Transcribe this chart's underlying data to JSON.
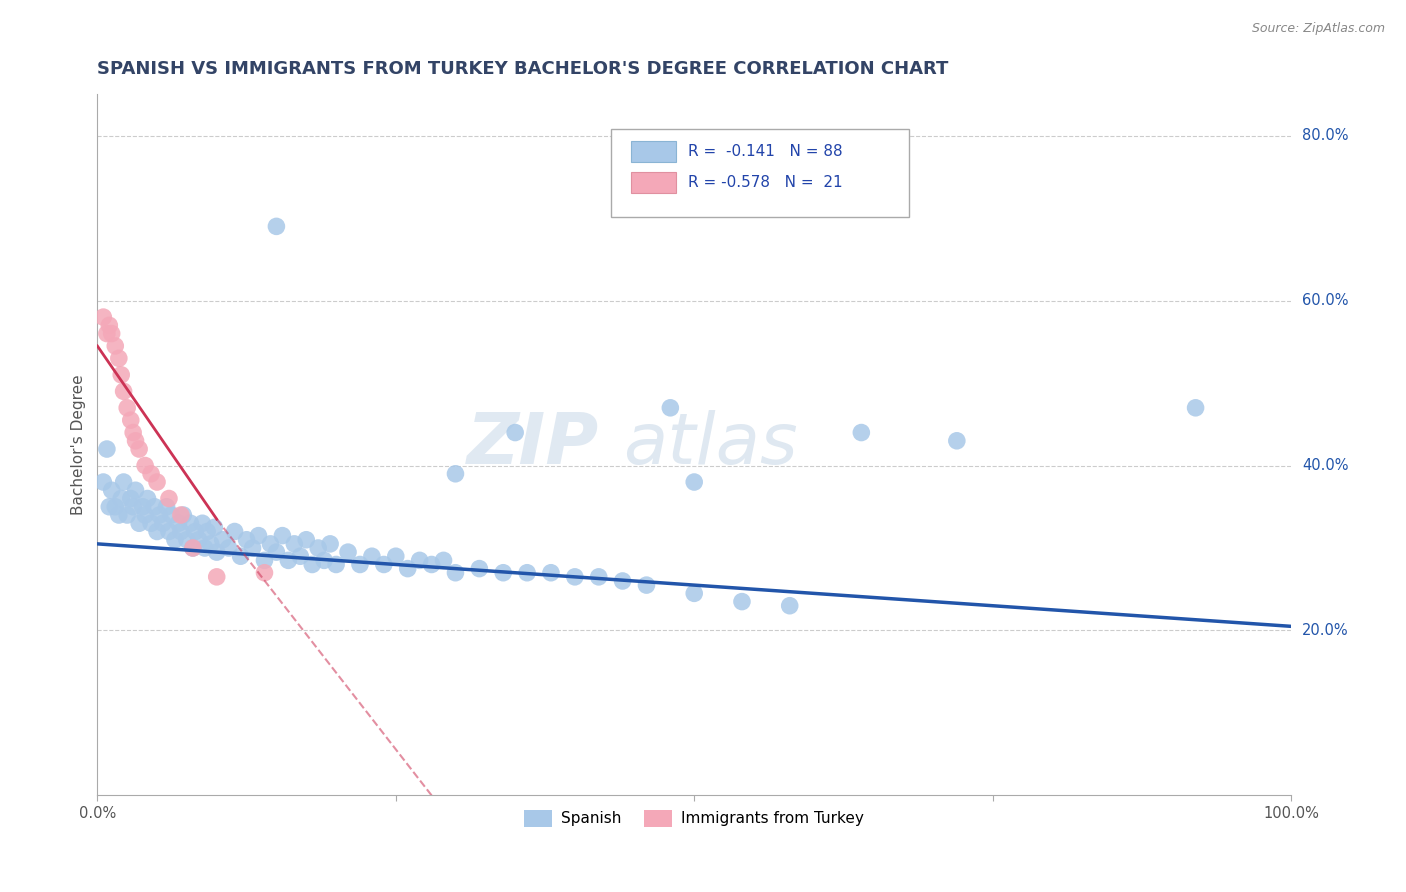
{
  "title": "SPANISH VS IMMIGRANTS FROM TURKEY BACHELOR'S DEGREE CORRELATION CHART",
  "source_text": "Source: ZipAtlas.com",
  "ylabel": "Bachelor's Degree",
  "xlim": [
    0.0,
    1.0
  ],
  "ylim": [
    0.0,
    0.85
  ],
  "ytick_labels": [
    "20.0%",
    "40.0%",
    "60.0%",
    "80.0%"
  ],
  "ytick_values": [
    0.2,
    0.4,
    0.6,
    0.8
  ],
  "legend1_label": "R =  -0.141   N = 88",
  "legend2_label": "R = -0.578   N =  21",
  "series1_label": "Spanish",
  "series2_label": "Immigrants from Turkey",
  "series1_color": "#a8c8e8",
  "series2_color": "#f4a8b8",
  "trendline1_color": "#2255aa",
  "trendline2_color": "#cc3355",
  "legend_box_color": "#a8c8e8",
  "legend_pink_color": "#f4a8b8",
  "background_color": "#ffffff",
  "grid_color": "#cccccc",
  "watermark_zip": "ZIP",
  "watermark_atlas": "atlas",
  "title_color": "#334466",
  "axis_label_color": "#2255aa",
  "blue_scatter_x": [
    0.005,
    0.008,
    0.01,
    0.012,
    0.015,
    0.018,
    0.02,
    0.022,
    0.025,
    0.028,
    0.03,
    0.032,
    0.035,
    0.038,
    0.04,
    0.042,
    0.045,
    0.048,
    0.05,
    0.052,
    0.055,
    0.058,
    0.06,
    0.062,
    0.065,
    0.068,
    0.07,
    0.072,
    0.075,
    0.078,
    0.08,
    0.082,
    0.085,
    0.088,
    0.09,
    0.092,
    0.095,
    0.098,
    0.1,
    0.105,
    0.11,
    0.115,
    0.12,
    0.125,
    0.13,
    0.135,
    0.14,
    0.145,
    0.15,
    0.155,
    0.16,
    0.165,
    0.17,
    0.175,
    0.18,
    0.185,
    0.19,
    0.195,
    0.2,
    0.21,
    0.22,
    0.23,
    0.24,
    0.25,
    0.26,
    0.27,
    0.28,
    0.29,
    0.3,
    0.32,
    0.34,
    0.36,
    0.38,
    0.4,
    0.42,
    0.44,
    0.46,
    0.5,
    0.54,
    0.58,
    0.35,
    0.3,
    0.48,
    0.5,
    0.64,
    0.72,
    0.92,
    0.15
  ],
  "blue_scatter_y": [
    0.38,
    0.42,
    0.35,
    0.37,
    0.35,
    0.34,
    0.36,
    0.38,
    0.34,
    0.36,
    0.35,
    0.37,
    0.33,
    0.35,
    0.34,
    0.36,
    0.33,
    0.35,
    0.32,
    0.34,
    0.33,
    0.35,
    0.32,
    0.34,
    0.31,
    0.33,
    0.32,
    0.34,
    0.31,
    0.33,
    0.3,
    0.32,
    0.31,
    0.33,
    0.3,
    0.32,
    0.305,
    0.325,
    0.295,
    0.31,
    0.3,
    0.32,
    0.29,
    0.31,
    0.3,
    0.315,
    0.285,
    0.305,
    0.295,
    0.315,
    0.285,
    0.305,
    0.29,
    0.31,
    0.28,
    0.3,
    0.285,
    0.305,
    0.28,
    0.295,
    0.28,
    0.29,
    0.28,
    0.29,
    0.275,
    0.285,
    0.28,
    0.285,
    0.27,
    0.275,
    0.27,
    0.27,
    0.27,
    0.265,
    0.265,
    0.26,
    0.255,
    0.245,
    0.235,
    0.23,
    0.44,
    0.39,
    0.47,
    0.38,
    0.44,
    0.43,
    0.47,
    0.69
  ],
  "pink_scatter_x": [
    0.005,
    0.008,
    0.01,
    0.012,
    0.015,
    0.018,
    0.02,
    0.022,
    0.025,
    0.028,
    0.03,
    0.032,
    0.035,
    0.04,
    0.045,
    0.05,
    0.06,
    0.07,
    0.08,
    0.1,
    0.14
  ],
  "pink_scatter_y": [
    0.58,
    0.56,
    0.57,
    0.56,
    0.545,
    0.53,
    0.51,
    0.49,
    0.47,
    0.455,
    0.44,
    0.43,
    0.42,
    0.4,
    0.39,
    0.38,
    0.36,
    0.34,
    0.3,
    0.265,
    0.27
  ],
  "trendline1_x0": 0.0,
  "trendline1_x1": 1.0,
  "trendline1_y0": 0.305,
  "trendline1_y1": 0.205,
  "trendline2_solid_x0": 0.0,
  "trendline2_solid_x1": 0.1,
  "trendline2_solid_y0": 0.545,
  "trendline2_solid_y1": 0.335,
  "trendline2_dash_x0": 0.1,
  "trendline2_dash_x1": 0.28,
  "trendline2_dash_y0": 0.335,
  "trendline2_dash_y1": 0.0
}
